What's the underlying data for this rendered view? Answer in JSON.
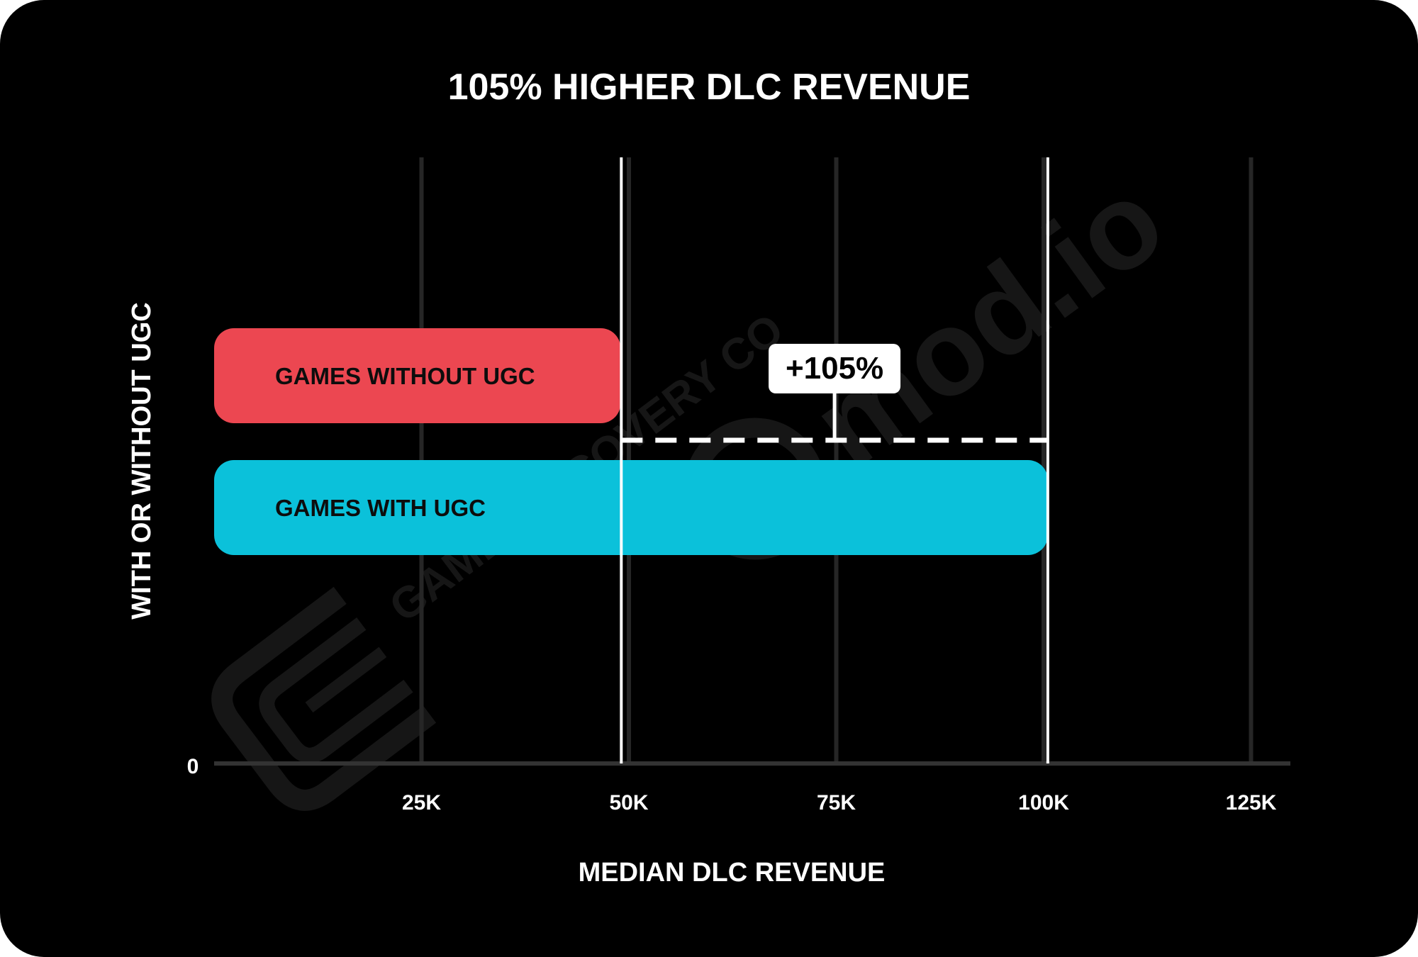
{
  "chart_data": {
    "type": "bar",
    "orientation": "horizontal",
    "title": "105% HIGHER DLC REVENUE",
    "xlabel": "MEDIAN DLC REVENUE",
    "ylabel": "WITH OR WITHOUT UGC",
    "xlim": [
      0,
      130000
    ],
    "x_ticks": [
      25000,
      50000,
      75000,
      100000,
      125000
    ],
    "x_tick_labels": [
      "25K",
      "50K",
      "75K",
      "100K",
      "125K"
    ],
    "origin_label": "0",
    "grid": true,
    "series": [
      {
        "name": "GAMES WITHOUT UGC",
        "value": 49000,
        "color": "#ec4751"
      },
      {
        "name": "GAMES WITH UGC",
        "value": 100500,
        "color": "#0bc1da"
      }
    ],
    "annotation": {
      "text": "+105%",
      "from_value": 49000,
      "to_value": 100500
    }
  },
  "watermarks": [
    "mod.io",
    "GAME DISCOVERY CO"
  ],
  "colors": {
    "background": "#000000",
    "frame": "#ffffff",
    "grid": "#262626",
    "axis": "#333333",
    "text": "#ffffff",
    "bar_label": "#0d0d0d",
    "annotation_line": "#ffffff",
    "watermark": "#161616"
  }
}
